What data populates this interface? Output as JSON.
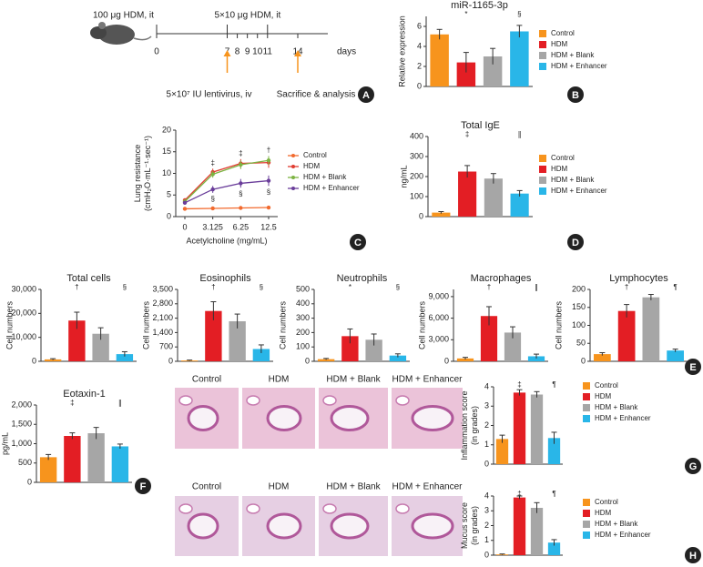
{
  "panel_labels": [
    "A",
    "B",
    "C",
    "D",
    "E",
    "F",
    "G",
    "H"
  ],
  "timeline": {
    "top_labels": [
      "100 μg HDM, it",
      "5×10 μg HDM, it"
    ],
    "ticks": [
      0,
      7,
      8,
      9,
      10,
      11,
      14
    ],
    "unit": "days",
    "bottom_labels": [
      "5×10⁷ IU lentivirus, iv",
      "Sacrifice & analysis"
    ]
  },
  "histology": {
    "labels": [
      "Control",
      "HDM",
      "HDM + Blank",
      "HDM + Enhancer"
    ]
  },
  "chart_data": [
    {
      "type": "bar",
      "title": "miR-1165-3p",
      "ylabel": "Relative expression",
      "categories": [
        "Control",
        "HDM",
        "HDM + Blank",
        "HDM + Enhancer"
      ],
      "colors": [
        "#f7941d",
        "#e31e24",
        "#a6a6a6",
        "#29b6e8"
      ],
      "values": [
        5.2,
        2.4,
        3.0,
        5.5
      ],
      "errors": [
        0.5,
        1.0,
        0.8,
        0.6
      ],
      "significance": [
        null,
        "*",
        null,
        "§"
      ],
      "ylim": [
        0,
        7
      ],
      "yticks": [
        0,
        2,
        4,
        6
      ],
      "legend": true
    },
    {
      "type": "line",
      "ylabel": [
        "Lung resistance",
        "(cmH₂O·mL⁻¹·sec⁻¹)"
      ],
      "xlabel": "Acetylcholine (mg/mL)",
      "categories": [
        "0",
        "3.125",
        "6.25",
        "12.5"
      ],
      "series": [
        {
          "name": "Control",
          "color": "#f26a2e",
          "values": [
            1.8,
            1.9,
            2.0,
            2.1
          ],
          "errors": [
            0.2,
            0.2,
            0.2,
            0.2
          ]
        },
        {
          "name": "HDM",
          "color": "#e03c31",
          "values": [
            3.8,
            10.3,
            12.3,
            12.5
          ],
          "errors": [
            0.4,
            0.8,
            1.0,
            1.2
          ]
        },
        {
          "name": "HDM + Blank",
          "color": "#7cb342",
          "values": [
            3.5,
            9.8,
            12.0,
            13.0
          ],
          "errors": [
            0.4,
            0.8,
            1.0,
            1.0
          ]
        },
        {
          "name": "HDM + Enhancer",
          "color": "#6a3d9a",
          "values": [
            3.2,
            6.3,
            7.7,
            8.3
          ],
          "errors": [
            0.3,
            0.8,
            1.0,
            1.2
          ]
        }
      ],
      "annotations_above": [
        null,
        "‡",
        "‡",
        "†"
      ],
      "annotations_below": [
        null,
        "§",
        "§",
        "§"
      ],
      "ylim": [
        0,
        20
      ],
      "yticks": [
        0,
        5,
        10,
        15,
        20
      ],
      "legend": true
    },
    {
      "type": "bar",
      "title": "Total IgE",
      "ylabel": "ng/mL",
      "categories": [
        "Control",
        "HDM",
        "HDM + Blank",
        "HDM + Enhancer"
      ],
      "colors": [
        "#f7941d",
        "#e31e24",
        "#a6a6a6",
        "#29b6e8"
      ],
      "values": [
        20,
        225,
        190,
        115
      ],
      "errors": [
        5,
        30,
        25,
        15
      ],
      "significance": [
        null,
        "‡",
        null,
        "∥"
      ],
      "ylim": [
        0,
        400
      ],
      "yticks": [
        0,
        100,
        200,
        300,
        400
      ],
      "legend": true
    },
    {
      "type": "bar",
      "title": "Total cells",
      "ylabel": "Cell numbers",
      "categories": [
        "Control",
        "HDM",
        "HDM + Blank",
        "HDM + Enhancer"
      ],
      "colors": [
        "#f7941d",
        "#e31e24",
        "#a6a6a6",
        "#29b6e8"
      ],
      "values": [
        800,
        17000,
        11500,
        3000
      ],
      "errors": [
        300,
        3500,
        2500,
        1000
      ],
      "significance": [
        null,
        "†",
        null,
        "§"
      ],
      "ylim": [
        0,
        30000
      ],
      "yticks": [
        0,
        {
          "value": 10000,
          "label": "10,000"
        },
        {
          "value": 20000,
          "label": "20,000"
        },
        {
          "value": 30000,
          "label": "30,000"
        }
      ],
      "legend": false
    },
    {
      "type": "bar",
      "title": "Eosinophils",
      "ylabel": "Cell numbers",
      "categories": [
        "Control",
        "HDM",
        "HDM + Blank",
        "HDM + Enhancer"
      ],
      "colors": [
        "#f7941d",
        "#e31e24",
        "#a6a6a6",
        "#29b6e8"
      ],
      "values": [
        40,
        2450,
        1950,
        600
      ],
      "errors": [
        20,
        450,
        350,
        200
      ],
      "significance": [
        null,
        "†",
        null,
        "§"
      ],
      "ylim": [
        0,
        3500
      ],
      "yticks": [
        0,
        700,
        {
          "value": 1400,
          "label": "1,400"
        },
        {
          "value": 2100,
          "label": "2,100"
        },
        {
          "value": 2800,
          "label": "2,800"
        },
        {
          "value": 3500,
          "label": "3,500"
        }
      ],
      "legend": false
    },
    {
      "type": "bar",
      "title": "Neutrophils",
      "ylabel": "Cell numbers",
      "categories": [
        "Control",
        "HDM",
        "HDM + Blank",
        "HDM + Enhancer"
      ],
      "colors": [
        "#f7941d",
        "#e31e24",
        "#a6a6a6",
        "#29b6e8"
      ],
      "values": [
        15,
        175,
        150,
        40
      ],
      "errors": [
        5,
        50,
        40,
        12
      ],
      "significance": [
        null,
        "*",
        null,
        "§"
      ],
      "ylim": [
        0,
        500
      ],
      "yticks": [
        0,
        100,
        200,
        300,
        400,
        500
      ],
      "legend": false
    },
    {
      "type": "bar",
      "title": "Macrophages",
      "ylabel": "Cell numbers",
      "categories": [
        "Control",
        "HDM",
        "HDM + Blank",
        "HDM + Enhancer"
      ],
      "colors": [
        "#f7941d",
        "#e31e24",
        "#a6a6a6",
        "#29b6e8"
      ],
      "values": [
        400,
        6300,
        4000,
        700
      ],
      "errors": [
        150,
        1300,
        800,
        300
      ],
      "significance": [
        null,
        "†",
        null,
        "∥"
      ],
      "ylim": [
        0,
        10000
      ],
      "yticks": [
        0,
        {
          "value": 3000,
          "label": "3,000"
        },
        {
          "value": 6000,
          "label": "6,000"
        },
        {
          "value": 9000,
          "label": "9,000"
        }
      ],
      "legend": false
    },
    {
      "type": "bar",
      "title": "Lymphocytes",
      "ylabel": "Cell numbers",
      "categories": [
        "Control",
        "HDM",
        "HDM + Blank",
        "HDM + Enhancer"
      ],
      "colors": [
        "#f7941d",
        "#e31e24",
        "#a6a6a6",
        "#29b6e8"
      ],
      "values": [
        20,
        140,
        178,
        30
      ],
      "errors": [
        4,
        18,
        8,
        4
      ],
      "significance": [
        null,
        "†",
        null,
        "¶"
      ],
      "ylim": [
        0,
        200
      ],
      "yticks": [
        0,
        50,
        100,
        150,
        200
      ],
      "legend": false
    },
    {
      "type": "bar",
      "title": "Eotaxin-1",
      "ylabel": "pg/mL",
      "categories": [
        "Control",
        "HDM",
        "HDM + Blank",
        "HDM + Enhancer"
      ],
      "colors": [
        "#f7941d",
        "#e31e24",
        "#a6a6a6",
        "#29b6e8"
      ],
      "values": [
        650,
        1200,
        1270,
        930
      ],
      "errors": [
        70,
        80,
        150,
        60
      ],
      "significance": [
        null,
        "‡",
        null,
        "∥"
      ],
      "ylim": [
        0,
        2000
      ],
      "yticks": [
        0,
        500,
        {
          "value": 1000,
          "label": "1,000"
        },
        {
          "value": 1500,
          "label": "1,500"
        },
        {
          "value": 2000,
          "label": "2,000"
        }
      ],
      "legend": false
    },
    {
      "type": "bar",
      "ylabel": [
        "Inflammation score",
        "(in grades)"
      ],
      "categories": [
        "Control",
        "HDM",
        "HDM + Blank",
        "HDM + Enhancer"
      ],
      "colors": [
        "#f7941d",
        "#e31e24",
        "#a6a6a6",
        "#29b6e8"
      ],
      "values": [
        1.3,
        3.7,
        3.6,
        1.35
      ],
      "errors": [
        0.2,
        0.15,
        0.15,
        0.3
      ],
      "significance": [
        null,
        "‡",
        null,
        "¶"
      ],
      "ylim": [
        0,
        4
      ],
      "yticks": [
        0,
        1,
        2,
        3,
        4
      ],
      "legend": true
    },
    {
      "type": "bar",
      "ylabel": [
        "Mucus score",
        "(in grades)"
      ],
      "categories": [
        "Control",
        "HDM",
        "HDM + Blank",
        "HDM + Enhancer"
      ],
      "colors": [
        "#f7941d",
        "#e31e24",
        "#a6a6a6",
        "#29b6e8"
      ],
      "values": [
        0.05,
        3.9,
        3.2,
        0.85
      ],
      "errors": [
        0.03,
        0.1,
        0.35,
        0.2
      ],
      "significance": [
        null,
        "‡",
        null,
        "¶"
      ],
      "ylim": [
        0,
        4
      ],
      "yticks": [
        0,
        1,
        2,
        3,
        4
      ],
      "legend": true
    }
  ]
}
